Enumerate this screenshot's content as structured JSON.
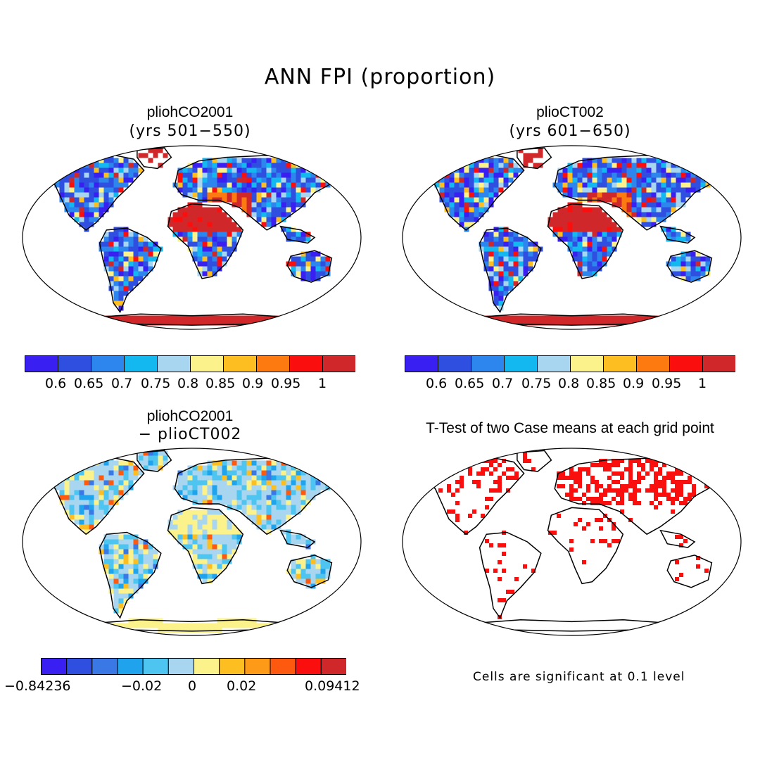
{
  "title": "ANN FPI (proportion)",
  "panels": [
    {
      "id": "p1",
      "title": "pliohCO2001",
      "subtitle": "(yrs 501−550)"
    },
    {
      "id": "p2",
      "title": "plioCT002",
      "subtitle": "(yrs 601−650)"
    },
    {
      "id": "p3",
      "title": "pliohCO2001",
      "subtitle": "− plioCT002"
    },
    {
      "id": "p4",
      "title": "T-Test of two Case means at each grid point",
      "subtitle": ""
    }
  ],
  "colorbar_abs": {
    "colors": [
      "#3a1ff2",
      "#2f4fe0",
      "#2c86ee",
      "#14b8f0",
      "#a8d6f0",
      "#fbf28c",
      "#fdbe22",
      "#fd7a10",
      "#fb0e0e",
      "#d0282a"
    ],
    "labels": [
      "0.6",
      "0.65",
      "0.7",
      "0.75",
      "0.8",
      "0.85",
      "0.9",
      "0.95",
      "1"
    ]
  },
  "colorbar_diff": {
    "colors": [
      "#3a1ff2",
      "#2f4fe0",
      "#3a78e6",
      "#1ea3ec",
      "#4ec4f0",
      "#a8d6f0",
      "#fbf28c",
      "#fdbe22",
      "#fd9a18",
      "#fd5a10",
      "#fb0e0e",
      "#d0282a"
    ],
    "labels": [
      "−0.84236",
      "−0.02",
      "0",
      "0.02",
      "0.09412"
    ]
  },
  "ttest_note": "Cells are significant at 0.1 level",
  "colors": {
    "significant": "#fa0f0f",
    "coast": "#000000"
  }
}
